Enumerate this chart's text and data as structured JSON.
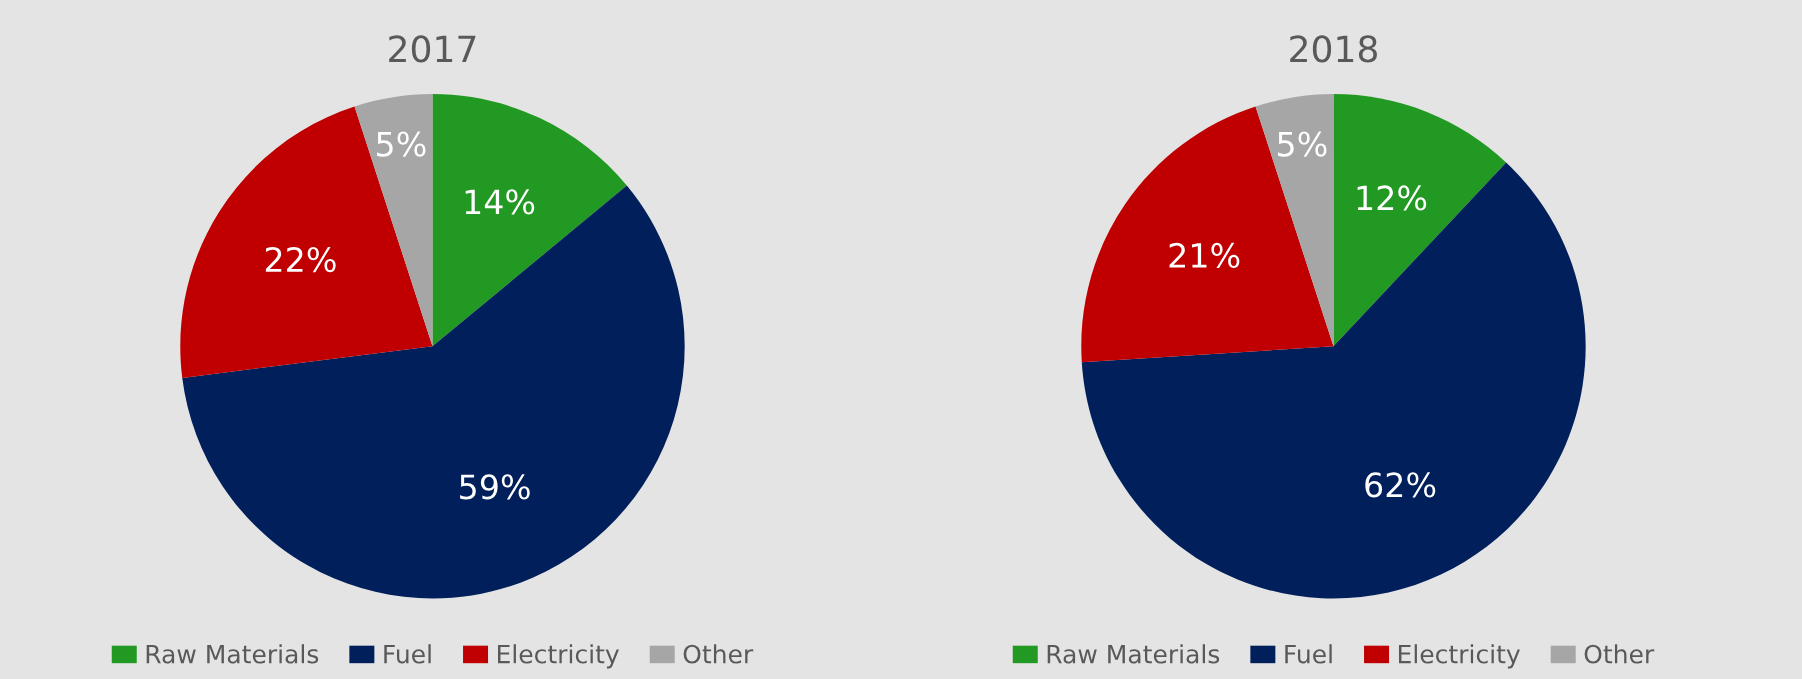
{
  "chart_data": [
    {
      "type": "pie",
      "title": "2017",
      "categories": [
        "Raw Materials",
        "Fuel",
        "Electricity",
        "Other"
      ],
      "values": [
        14,
        59,
        22,
        5
      ],
      "colors": [
        "#229922",
        "#001f5b",
        "#c00000",
        "#a6a6a6"
      ],
      "value_labels": [
        "14%",
        "59%",
        "22%",
        "5%"
      ],
      "legend": "bottom"
    },
    {
      "type": "pie",
      "title": "2018",
      "categories": [
        "Raw Materials",
        "Fuel",
        "Electricity",
        "Other"
      ],
      "values": [
        12,
        62,
        21,
        5
      ],
      "colors": [
        "#229922",
        "#001f5b",
        "#c00000",
        "#a6a6a6"
      ],
      "value_labels": [
        "12%",
        "62%",
        "21%",
        "5%"
      ],
      "legend": "bottom"
    }
  ]
}
